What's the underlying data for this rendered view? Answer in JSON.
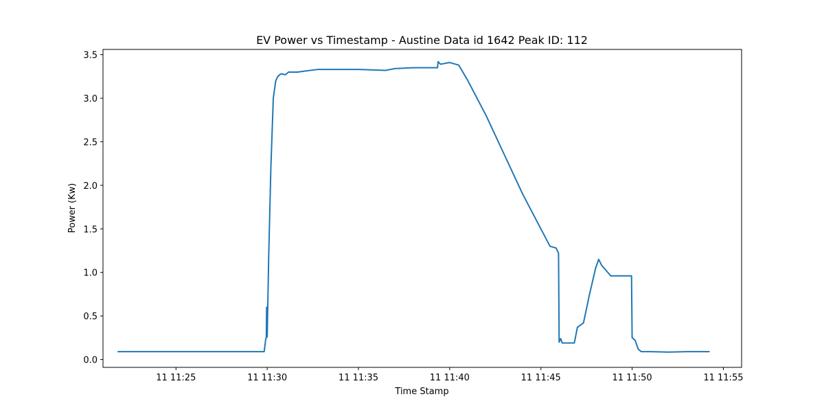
{
  "chart_data": {
    "type": "line",
    "title": "EV Power vs Timestamp - Austine Data id 1642 Peak ID: 112",
    "xlabel": "Time Stamp",
    "ylabel": "Power (Kw)",
    "x_tick_labels": [
      "11 11:25",
      "11 11:30",
      "11 11:35",
      "11 11:40",
      "11 11:45",
      "11 11:50",
      "11 11:55"
    ],
    "x_tick_times": [
      "11:25",
      "11:30",
      "11:35",
      "11:40",
      "11:45",
      "11:50",
      "11:55"
    ],
    "y_ticks": [
      0.0,
      0.5,
      1.0,
      1.5,
      2.0,
      2.5,
      3.0,
      3.5
    ],
    "y_tick_labels": [
      "0.0",
      "0.5",
      "1.0",
      "1.5",
      "2.0",
      "2.5",
      "3.0",
      "3.5"
    ],
    "xlim": [
      "11:21:00",
      "11:56:00"
    ],
    "ylim": [
      -0.09,
      3.56
    ],
    "grid": false,
    "legend": false,
    "series_color": "#1f77b4",
    "series": [
      {
        "x": [
          "11:21:48",
          "11:29:50",
          "11:29:55",
          "11:29:57",
          "11:29:58",
          "11:30:00",
          "11:30:05",
          "11:30:12",
          "11:30:20",
          "11:30:28",
          "11:30:35",
          "11:30:45",
          "11:31:00",
          "11:31:10",
          "11:31:20",
          "11:31:40",
          "11:32:00",
          "11:32:45",
          "11:35:00",
          "11:36:30",
          "11:37:00",
          "11:38:00",
          "11:39:20",
          "11:39:22",
          "11:39:30",
          "11:40:00",
          "11:40:30",
          "11:41:00",
          "11:42:00",
          "11:43:00",
          "11:44:00",
          "11:45:00",
          "11:45:30",
          "11:45:50",
          "11:45:58",
          "11:46:00",
          "11:46:05",
          "11:46:10",
          "11:46:15",
          "11:46:20",
          "11:46:50",
          "11:47:00",
          "11:47:20",
          "11:47:40",
          "11:48:00",
          "11:48:10",
          "11:48:20",
          "11:48:40",
          "11:48:50",
          "11:49:00",
          "11:49:58",
          "11:50:00",
          "11:50:10",
          "11:50:20",
          "11:50:30",
          "11:51:00",
          "11:52:00",
          "11:53:00",
          "11:54:15"
        ],
        "y": [
          0.09,
          0.09,
          0.23,
          0.25,
          0.6,
          0.26,
          1.2,
          2.2,
          3.0,
          3.2,
          3.25,
          3.28,
          3.27,
          3.3,
          3.3,
          3.3,
          3.31,
          3.33,
          3.33,
          3.32,
          3.34,
          3.35,
          3.35,
          3.42,
          3.39,
          3.41,
          3.38,
          3.2,
          2.8,
          2.35,
          1.9,
          1.5,
          1.3,
          1.28,
          1.22,
          0.2,
          0.24,
          0.19,
          0.19,
          0.19,
          0.19,
          0.37,
          0.42,
          0.75,
          1.05,
          1.15,
          1.08,
          1.0,
          0.96,
          0.96,
          0.96,
          0.25,
          0.22,
          0.12,
          0.09,
          0.09,
          0.085,
          0.09,
          0.09
        ]
      }
    ]
  }
}
